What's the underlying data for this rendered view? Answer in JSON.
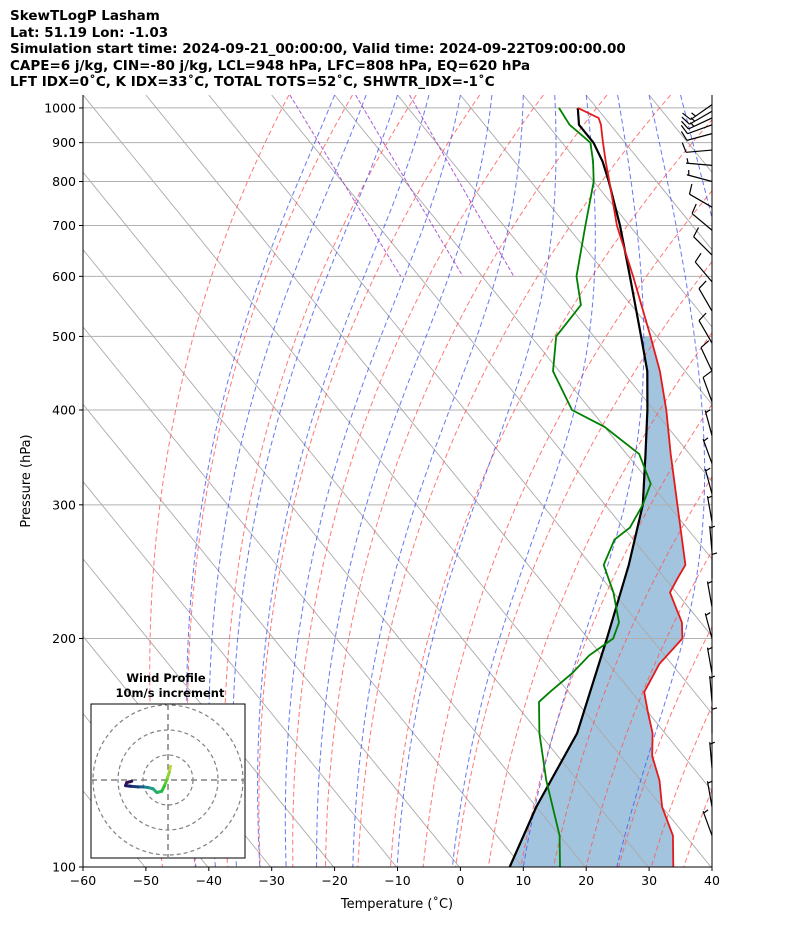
{
  "header": {
    "line1": "SkewTLogP Lasham",
    "line2": "Lat: 51.19   Lon: -1.03",
    "line3": "Simulation start time: 2024-09-21_00:00:00, Valid time: 2024-09-22T09:00:00.00",
    "line4": "CAPE=6 j/kg, CIN=-80 j/kg, LCL=948 hPa, LFC=808 hPa, EQ=620 hPa",
    "line5": "LFT IDX=0˚C, K IDX=33˚C, TOTAL TOTS=52˚C, SHWTR_IDX=-1˚C"
  },
  "colors": {
    "temperature": "#e31a1c",
    "dewpoint": "#008000",
    "parcel": "#000000",
    "cape_fill": "#a3c4de",
    "dry_adiabat": "#ff5555",
    "moist_adiabat": "#4455ee",
    "mixing_ratio": "#9933cc",
    "isotherm": "#aaaaaa"
  },
  "chart_data": {
    "type": "skewt",
    "xlabel": "Temperature (˚C)",
    "ylabel": "Pressure (hPa)",
    "xlim": [
      -60,
      40
    ],
    "ylim": [
      1040,
      100
    ],
    "x_ticks": [
      "−60",
      "−50",
      "−40",
      "−30",
      "−20",
      "−10",
      "0",
      "10",
      "20",
      "30",
      "40"
    ],
    "y_ticks": [
      "100",
      "200",
      "300",
      "400",
      "500",
      "600",
      "700",
      "800",
      "900",
      "1000"
    ],
    "temperature_profile": [
      [
        1000,
        17
      ],
      [
        970,
        19
      ],
      [
        950,
        18.5
      ],
      [
        925,
        17.5
      ],
      [
        900,
        16.5
      ],
      [
        850,
        14.5
      ],
      [
        800,
        12.5
      ],
      [
        700,
        8
      ],
      [
        600,
        4
      ],
      [
        500,
        -1
      ],
      [
        450,
        -4
      ],
      [
        400,
        -8
      ],
      [
        350,
        -13
      ],
      [
        300,
        -18.5
      ],
      [
        250,
        -25
      ],
      [
        240,
        -28
      ],
      [
        230,
        -31
      ],
      [
        220,
        -32
      ],
      [
        210,
        -33
      ],
      [
        200,
        -35
      ],
      [
        185,
        -42
      ],
      [
        170,
        -48
      ],
      [
        160,
        -50
      ],
      [
        150,
        -52
      ],
      [
        140,
        -55
      ],
      [
        130,
        -57
      ],
      [
        120,
        -60
      ],
      [
        110,
        -62
      ],
      [
        100,
        -66
      ]
    ],
    "dewpoint_profile": [
      [
        1000,
        14
      ],
      [
        950,
        13.5
      ],
      [
        925,
        14
      ],
      [
        900,
        14.5
      ],
      [
        850,
        12.5
      ],
      [
        800,
        10
      ],
      [
        700,
        3
      ],
      [
        600,
        -5
      ],
      [
        550,
        -8
      ],
      [
        500,
        -16
      ],
      [
        450,
        -21
      ],
      [
        400,
        -23
      ],
      [
        380,
        -20
      ],
      [
        350,
        -18
      ],
      [
        320,
        -20
      ],
      [
        300,
        -24
      ],
      [
        280,
        -29
      ],
      [
        270,
        -33
      ],
      [
        250,
        -38
      ],
      [
        230,
        -40
      ],
      [
        210,
        -43
      ],
      [
        200,
        -46
      ],
      [
        190,
        -52
      ],
      [
        180,
        -57
      ],
      [
        170,
        -63
      ],
      [
        165,
        -66
      ],
      [
        150,
        -70
      ],
      [
        130,
        -75
      ],
      [
        110,
        -80
      ],
      [
        100,
        -84
      ]
    ],
    "parcel_profile": [
      [
        1000,
        17
      ],
      [
        950,
        15
      ],
      [
        900,
        15
      ],
      [
        850,
        14
      ],
      [
        800,
        12.4
      ],
      [
        700,
        8.5
      ],
      [
        600,
        3.5
      ],
      [
        500,
        -2.5
      ],
      [
        450,
        -6
      ],
      [
        400,
        -11
      ],
      [
        350,
        -17
      ],
      [
        300,
        -24
      ],
      [
        250,
        -34
      ],
      [
        200,
        -47
      ],
      [
        150,
        -64
      ],
      [
        120,
        -80
      ],
      [
        100,
        -92
      ]
    ],
    "wind_profile_inset": {
      "title_line1": "Wind Profile",
      "title_line2": "10m/s increment",
      "hodograph_uv": [
        [
          0.2,
          -1.1
        ],
        [
          0.1,
          -0.6
        ],
        [
          -0.1,
          0
        ],
        [
          -0.3,
          0.5
        ],
        [
          -0.5,
          0.9
        ],
        [
          -0.9,
          1.0
        ],
        [
          -1.2,
          0.7
        ],
        [
          -1.6,
          0.6
        ],
        [
          -2.0,
          0.55
        ],
        [
          -2.4,
          0.55
        ],
        [
          -3.0,
          0.5
        ],
        [
          -3.4,
          0.45
        ],
        [
          -3.3,
          0.2
        ],
        [
          -2.9,
          0.1
        ]
      ]
    },
    "wind_barbs": [
      {
        "p": 1010,
        "dir": 235,
        "kt": 16
      },
      {
        "p": 990,
        "dir": 240,
        "kt": 16
      },
      {
        "p": 970,
        "dir": 245,
        "kt": 15
      },
      {
        "p": 950,
        "dir": 250,
        "kt": 13
      },
      {
        "p": 925,
        "dir": 255,
        "kt": 12
      },
      {
        "p": 880,
        "dir": 265,
        "kt": 10
      },
      {
        "p": 840,
        "dir": 275,
        "kt": 9
      },
      {
        "p": 800,
        "dir": 285,
        "kt": 8
      },
      {
        "p": 740,
        "dir": 300,
        "kt": 10
      },
      {
        "p": 690,
        "dir": 310,
        "kt": 14
      },
      {
        "p": 640,
        "dir": 315,
        "kt": 13
      },
      {
        "p": 590,
        "dir": 320,
        "kt": 12
      },
      {
        "p": 540,
        "dir": 330,
        "kt": 12
      },
      {
        "p": 490,
        "dir": 330,
        "kt": 13
      },
      {
        "p": 450,
        "dir": 335,
        "kt": 12
      },
      {
        "p": 410,
        "dir": 340,
        "kt": 10
      },
      {
        "p": 370,
        "dir": 345,
        "kt": 9
      },
      {
        "p": 340,
        "dir": 340,
        "kt": 8
      },
      {
        "p": 310,
        "dir": 345,
        "kt": 8
      },
      {
        "p": 285,
        "dir": 350,
        "kt": 7
      },
      {
        "p": 260,
        "dir": 355,
        "kt": 7
      },
      {
        "p": 240,
        "dir": 0,
        "kt": 6
      },
      {
        "p": 220,
        "dir": 350,
        "kt": 6
      },
      {
        "p": 200,
        "dir": 345,
        "kt": 6
      },
      {
        "p": 180,
        "dir": 350,
        "kt": 7
      },
      {
        "p": 165,
        "dir": 355,
        "kt": 8
      },
      {
        "p": 150,
        "dir": 0,
        "kt": 9
      },
      {
        "p": 135,
        "dir": 355,
        "kt": 8
      },
      {
        "p": 120,
        "dir": 350,
        "kt": 6
      },
      {
        "p": 110,
        "dir": 340,
        "kt": 5
      }
    ]
  }
}
